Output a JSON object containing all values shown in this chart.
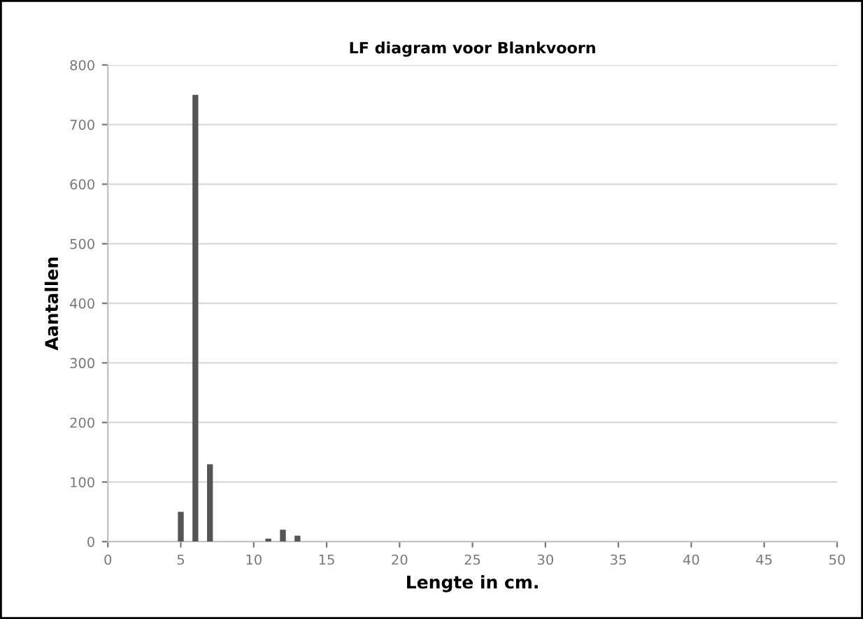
{
  "chart_data": {
    "type": "bar",
    "title": "LF diagram voor Blankvoorn",
    "xlabel": "Lengte in cm.",
    "ylabel": "Aantallen",
    "x": [
      5,
      6,
      7,
      11,
      12,
      13
    ],
    "values": [
      50,
      750,
      130,
      5,
      20,
      10
    ],
    "color": "#555555",
    "xlim": [
      0,
      50
    ],
    "xticks": [
      0,
      5,
      10,
      15,
      20,
      25,
      30,
      35,
      40,
      45,
      50
    ],
    "ylim": [
      0,
      800
    ],
    "yticks": [
      0,
      100,
      200,
      300,
      400,
      500,
      600,
      700,
      800
    ],
    "grid": "y"
  }
}
